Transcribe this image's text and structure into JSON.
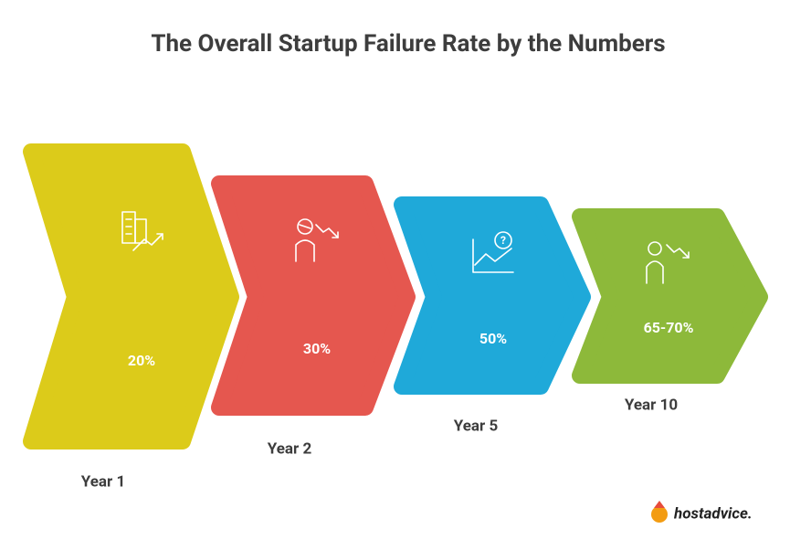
{
  "header": {
    "title": "The Overall Startup Failure Rate by the Numbers"
  },
  "stages": [
    {
      "value": "20%",
      "label": "Year 1"
    },
    {
      "value": "30%",
      "label": "Year 2"
    },
    {
      "value": "50%",
      "label": "Year 5"
    },
    {
      "value": "65-70%",
      "label": "Year 10"
    }
  ],
  "footer": {
    "logo": "hostadvice."
  }
}
